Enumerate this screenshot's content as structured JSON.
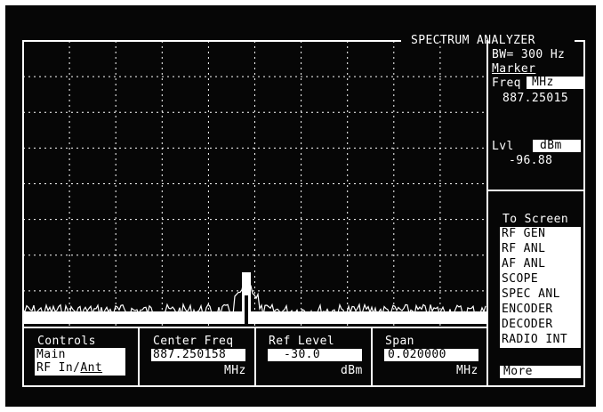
{
  "header": {
    "title": "SPECTRUM ANALYZER",
    "bandwidth": "BW= 300 Hz"
  },
  "marker": {
    "heading": "Marker",
    "freq_label": "Freq",
    "freq_unit": "MHz",
    "freq_value": "887.25015",
    "level_label": "Lvl",
    "level_unit": "dBm",
    "level_value": "-96.88"
  },
  "to_screen": {
    "heading": "To Screen",
    "items": [
      "RF GEN",
      "RF ANL",
      "AF ANL",
      "SCOPE",
      "SPEC ANL",
      "ENCODER",
      "DECODER",
      "RADIO INT"
    ],
    "more_label": "More"
  },
  "controls": {
    "label": "Controls",
    "choice_1": "Main",
    "choice_2_prefix": "RF In/",
    "choice_2_selected": "Ant"
  },
  "center_freq": {
    "label": "Center Freq",
    "value": "887.250158",
    "unit": "MHz"
  },
  "ref_level": {
    "label": "Ref Level",
    "value": "-30.0",
    "unit": "dBm"
  },
  "span": {
    "label": "Span",
    "value": "0.020000",
    "unit": "MHz"
  },
  "colors": {
    "background": "#060606",
    "foreground": "#ffffff"
  }
}
